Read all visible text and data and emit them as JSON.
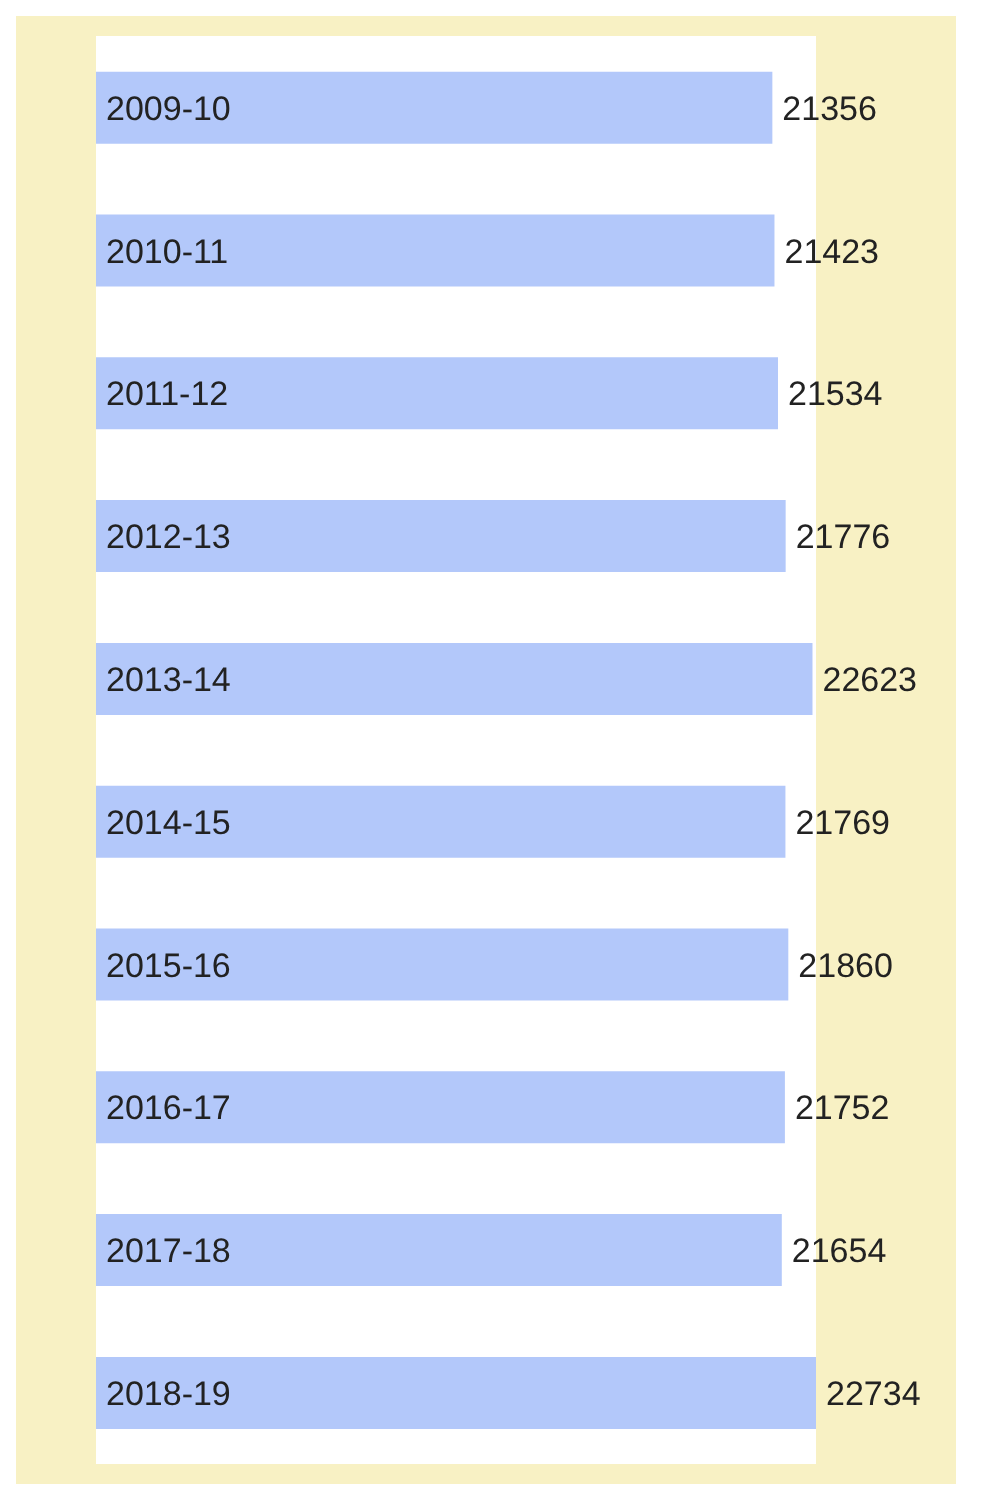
{
  "chart_data": {
    "type": "bar",
    "orientation": "horizontal",
    "categories": [
      "2009-10",
      "2010-11",
      "2011-12",
      "2012-13",
      "2013-14",
      "2014-15",
      "2015-16",
      "2016-17",
      "2017-18",
      "2018-19"
    ],
    "values": [
      21356,
      21423,
      21534,
      21776,
      22623,
      21769,
      21860,
      21752,
      21654,
      22734
    ],
    "color": "#b3c8fa",
    "data_labels": true,
    "tick_labels": false
  }
}
